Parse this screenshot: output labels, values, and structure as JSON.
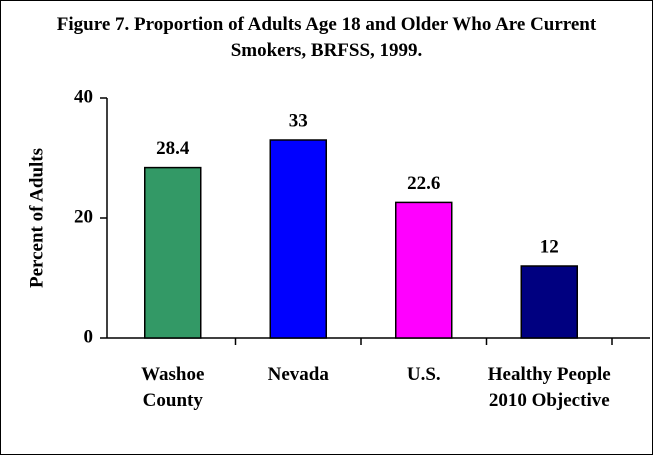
{
  "chart_data": {
    "type": "bar",
    "title": "Figure 7.  Proportion of Adults Age 18 and Older Who Are Current Smokers, BRFSS, 1999.",
    "y_label": "Percent of Adults",
    "categories": [
      "Washoe County",
      "Nevada",
      "U.S.",
      "Healthy People 2010 Objective"
    ],
    "values": [
      28.4,
      33,
      22.6,
      12
    ],
    "colors": [
      "#339966",
      "#0000ff",
      "#ff00ff",
      "#000080"
    ],
    "ylim": [
      0,
      40
    ],
    "yticks": [
      0,
      20,
      40
    ],
    "grid": false
  }
}
